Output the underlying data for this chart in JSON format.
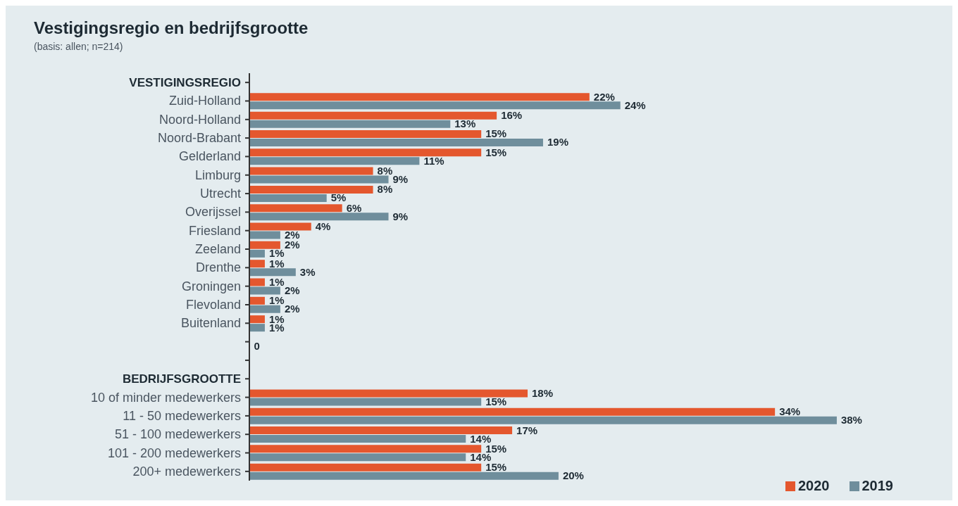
{
  "chart_data": {
    "type": "bar",
    "orientation": "horizontal",
    "title": "Vestigingsregio en bedrijfsgrootte",
    "subtitle": "(basis: allen; n=214)",
    "categories": [
      "VESTIGINGSREGIO",
      "Zuid-Holland",
      "Noord-Holland",
      "Noord-Brabant",
      "Gelderland",
      "Limburg",
      "Utrecht",
      "Overijssel",
      "Friesland",
      "Zeeland",
      "Drenthe",
      "Groningen",
      "Flevoland",
      "Buitenland",
      null,
      null,
      "BEDRIJFSGROOTTE",
      "10 of minder medewerkers",
      "11 - 50 medewerkers",
      "51 - 100 medewerkers",
      "101 - 200 medewerkers",
      "200+ medewerkers"
    ],
    "series": [
      {
        "name": "2020",
        "color": "#e4572e",
        "values": [
          null,
          22,
          16,
          15,
          15,
          8,
          8,
          6,
          4,
          2,
          1,
          1,
          1,
          1,
          null,
          null,
          null,
          18,
          34,
          17,
          15,
          15
        ],
        "value_labels": [
          null,
          "22%",
          "16%",
          "15%",
          "15%",
          "8%",
          "8%",
          "6%",
          "4%",
          "2%",
          "1%",
          "1%",
          "1%",
          "1%",
          null,
          null,
          null,
          "18%",
          "34%",
          "17%",
          "15%",
          "15%"
        ]
      },
      {
        "name": "2019",
        "color": "#6f8e9c",
        "values": [
          null,
          24,
          13,
          19,
          11,
          9,
          5,
          9,
          2,
          1,
          3,
          2,
          2,
          1,
          0,
          null,
          null,
          15,
          38,
          14,
          14,
          20
        ],
        "value_labels": [
          null,
          "24%",
          "13%",
          "19%",
          "11%",
          "9%",
          "5%",
          "9%",
          "2%",
          "1%",
          "3%",
          "2%",
          "2%",
          "1%",
          "0",
          null,
          null,
          "15%",
          "38%",
          "14%",
          "14%",
          "20%"
        ]
      }
    ],
    "legend": "bottom right",
    "grid": false
  }
}
